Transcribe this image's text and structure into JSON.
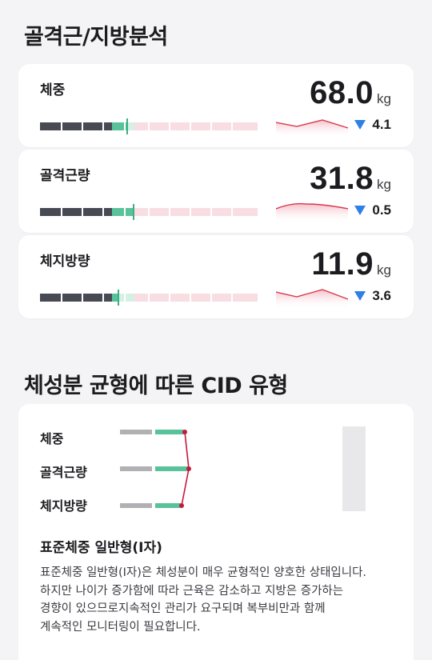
{
  "section1": {
    "title": "골격근/지방분석"
  },
  "metrics": [
    {
      "name": "체중",
      "value": "68.0",
      "unit": "kg",
      "change": "4.1",
      "change_direction": "down",
      "gauge_level_percent": 40
    },
    {
      "name": "골격근량",
      "value": "31.8",
      "unit": "kg",
      "change": "0.5",
      "change_direction": "down",
      "gauge_level_percent": 43
    },
    {
      "name": "체지방량",
      "value": "11.9",
      "unit": "kg",
      "change": "3.6",
      "change_direction": "down",
      "gauge_level_percent": 36
    }
  ],
  "section2": {
    "title": "체성분 균형에 따른 CID 유형"
  },
  "cid": {
    "rows": [
      {
        "label": "체중"
      },
      {
        "label": "골격근량"
      },
      {
        "label": "체지방량"
      }
    ],
    "type_title": "표준체중 일반형(I자)",
    "description_lines": [
      "표준체중 일반형(I자)은 체성분이 매우 균형적인 양호한 상태입니다.",
      "하지만 나이가 증가함에 따라 근육은 감소하고 지방은 증가하는",
      "경향이 있으므로지속적인 관리가 요구되며 복부비만과 함께",
      "계속적인 모니터링이 필요합니다."
    ]
  },
  "colors": {
    "gauge_dark": "#474a53",
    "gauge_green": "#59c29a",
    "gauge_pink": "#f8dde2",
    "sparkline_stroke": "#d8394f",
    "change_down": "#2e7fe6",
    "cid_line": "#c4183c"
  },
  "icons": {
    "change_indicator": "triangle-down-icon"
  }
}
